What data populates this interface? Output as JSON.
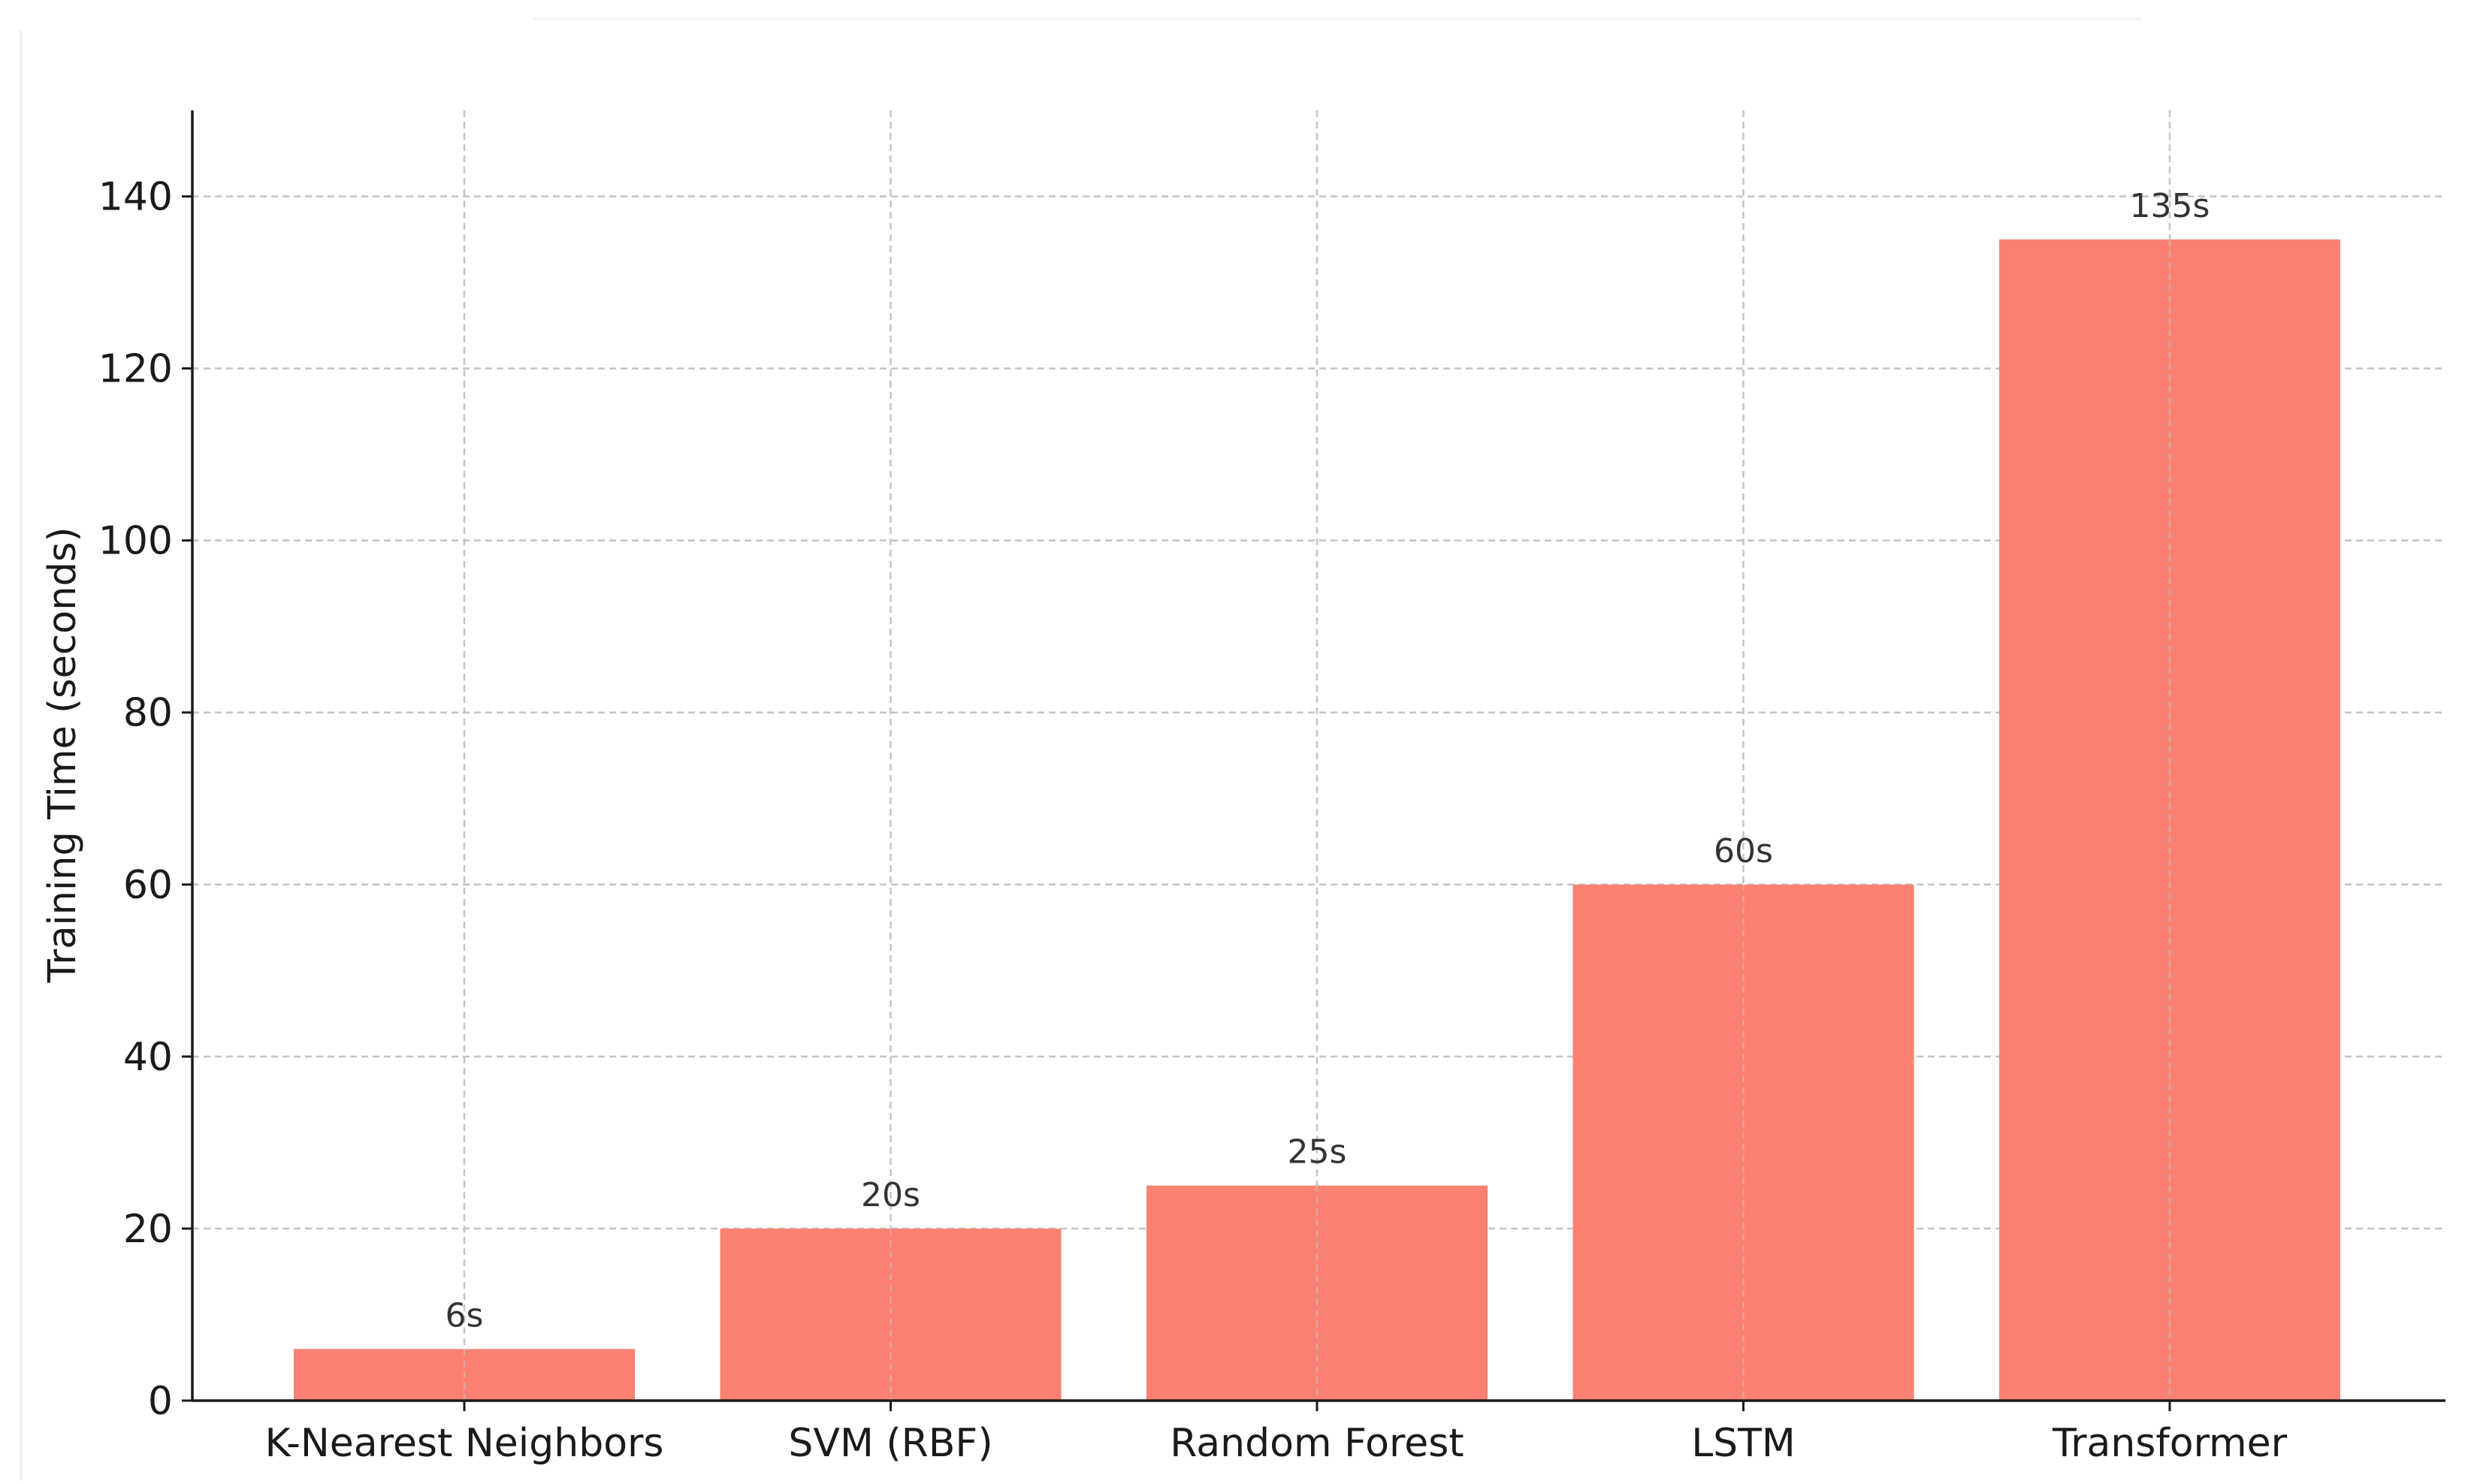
{
  "chart_data": {
    "type": "bar",
    "title": "",
    "xlabel": "",
    "ylabel": "Training Time (seconds)",
    "ylim": [
      0,
      150
    ],
    "yticks": [
      0,
      20,
      40,
      60,
      80,
      100,
      120,
      140
    ],
    "categories": [
      "K-Nearest Neighbors",
      "SVM (RBF)",
      "Random Forest",
      "LSTM",
      "Transformer"
    ],
    "values": [
      6,
      20,
      25,
      60,
      135
    ],
    "value_labels": [
      "6s",
      "20s",
      "25s",
      "60s",
      "135s"
    ],
    "bar_color": "#fa8072",
    "grid": true,
    "grid_style": "dashed",
    "legend": "none"
  }
}
